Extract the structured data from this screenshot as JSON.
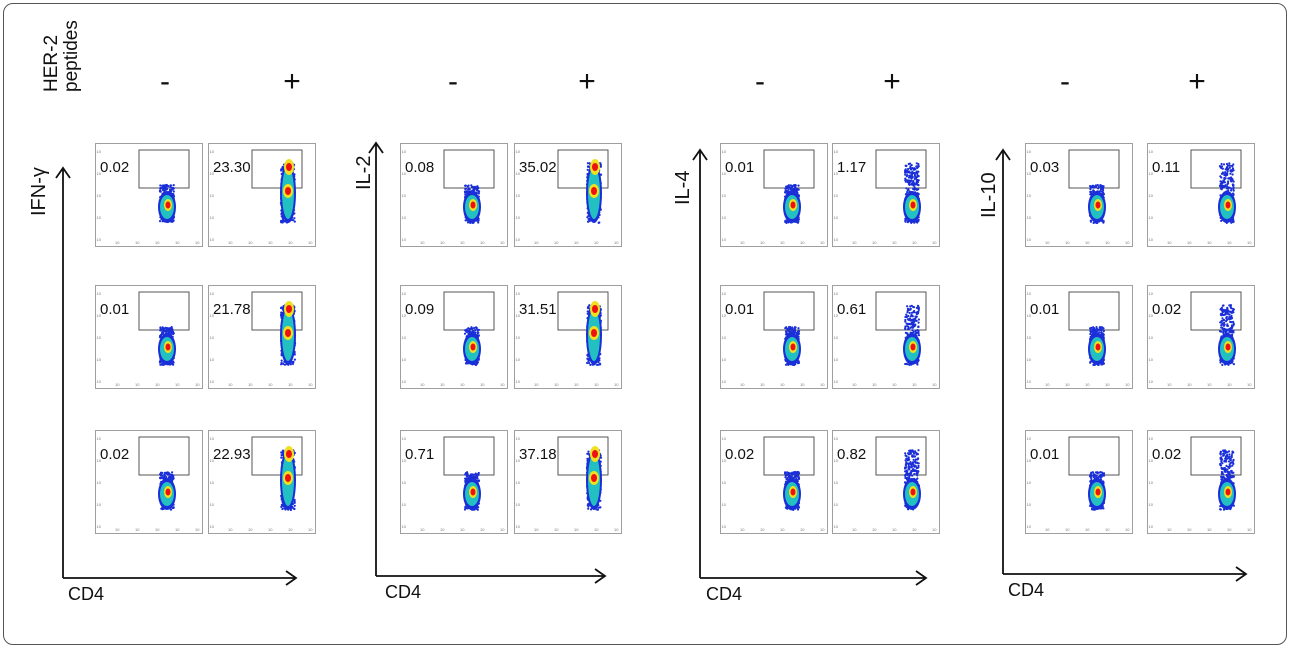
{
  "header": {
    "line1": "HER-2",
    "line2": "peptides"
  },
  "signs": {
    "minus": "-",
    "plus": "+"
  },
  "axis_x_label": "CD4",
  "panels": [
    {
      "cytokine": "IFN-γ",
      "rows": [
        {
          "minus": "0.02",
          "plus": "23.30"
        },
        {
          "minus": "0.01",
          "plus": "21.78"
        },
        {
          "minus": "0.02",
          "plus": "22.93"
        }
      ]
    },
    {
      "cytokine": "IL-2",
      "rows": [
        {
          "minus": "0.08",
          "plus": "35.02"
        },
        {
          "minus": "0.09",
          "plus": "31.51"
        },
        {
          "minus": "0.71",
          "plus": "37.18"
        }
      ]
    },
    {
      "cytokine": "IL-4",
      "rows": [
        {
          "minus": "0.01",
          "plus": "1.17"
        },
        {
          "minus": "0.01",
          "plus": "0.61"
        },
        {
          "minus": "0.02",
          "plus": "0.82"
        }
      ]
    },
    {
      "cytokine": "IL-10",
      "rows": [
        {
          "minus": "0.03",
          "plus": "0.11"
        },
        {
          "minus": "0.01",
          "plus": "0.02"
        },
        {
          "minus": "0.01",
          "plus": "0.02"
        }
      ]
    }
  ],
  "colors": {
    "density_low": "#1a2fd8",
    "density_mid": "#22c0c0",
    "density_high": "#ee1111",
    "density_warm": "#f0e020"
  }
}
